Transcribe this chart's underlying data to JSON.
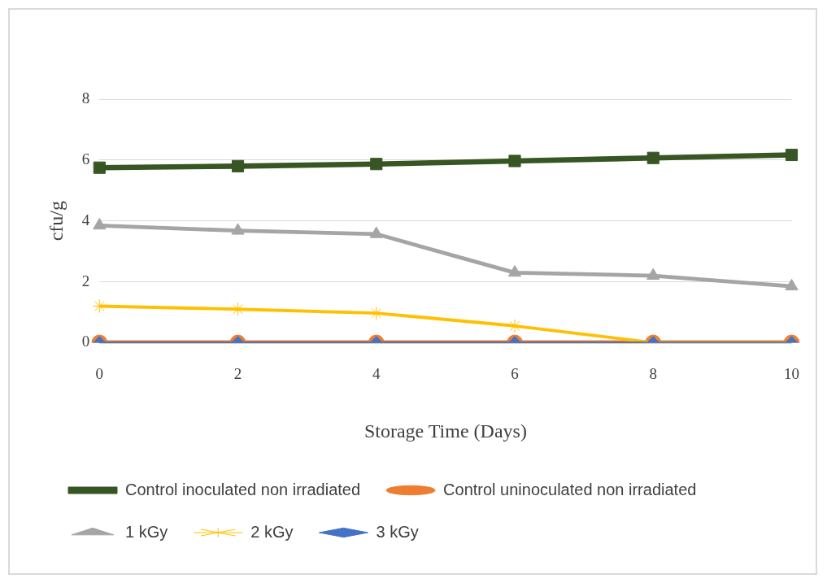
{
  "chart_data": {
    "type": "line",
    "xlabel": "Storage Time (Days)",
    "ylabel": "cfu/g",
    "categories": [
      "0",
      "2",
      "4",
      "6",
      "8",
      "10"
    ],
    "ylim": [
      0,
      8
    ],
    "yticks": [
      0,
      2,
      4,
      6,
      8
    ],
    "grid": "y",
    "legend": "bottom",
    "line_style": "solid",
    "series": [
      {
        "name": "Control inoculated non irradiated",
        "color": "#375623",
        "marker": "square",
        "values": [
          5.75,
          5.8,
          5.87,
          5.97,
          6.07,
          6.17
        ]
      },
      {
        "name": "Control uninoculated non irradiated",
        "color": "#ed7d31",
        "marker": "circle",
        "values": [
          0,
          0,
          0,
          0,
          0,
          0
        ]
      },
      {
        "name": "1 kGy",
        "color": "#a5a5a5",
        "marker": "triangle",
        "values": [
          3.85,
          3.68,
          3.57,
          2.3,
          2.2,
          1.85
        ]
      },
      {
        "name": "2 kGy",
        "color": "#ffc000",
        "marker": "cross",
        "values": [
          1.2,
          1.1,
          0.97,
          0.55,
          0,
          0
        ]
      },
      {
        "name": "3 kGy",
        "color": "#4472c4",
        "marker": "diamond",
        "values": [
          0,
          0,
          0,
          0,
          0,
          0
        ]
      }
    ]
  }
}
